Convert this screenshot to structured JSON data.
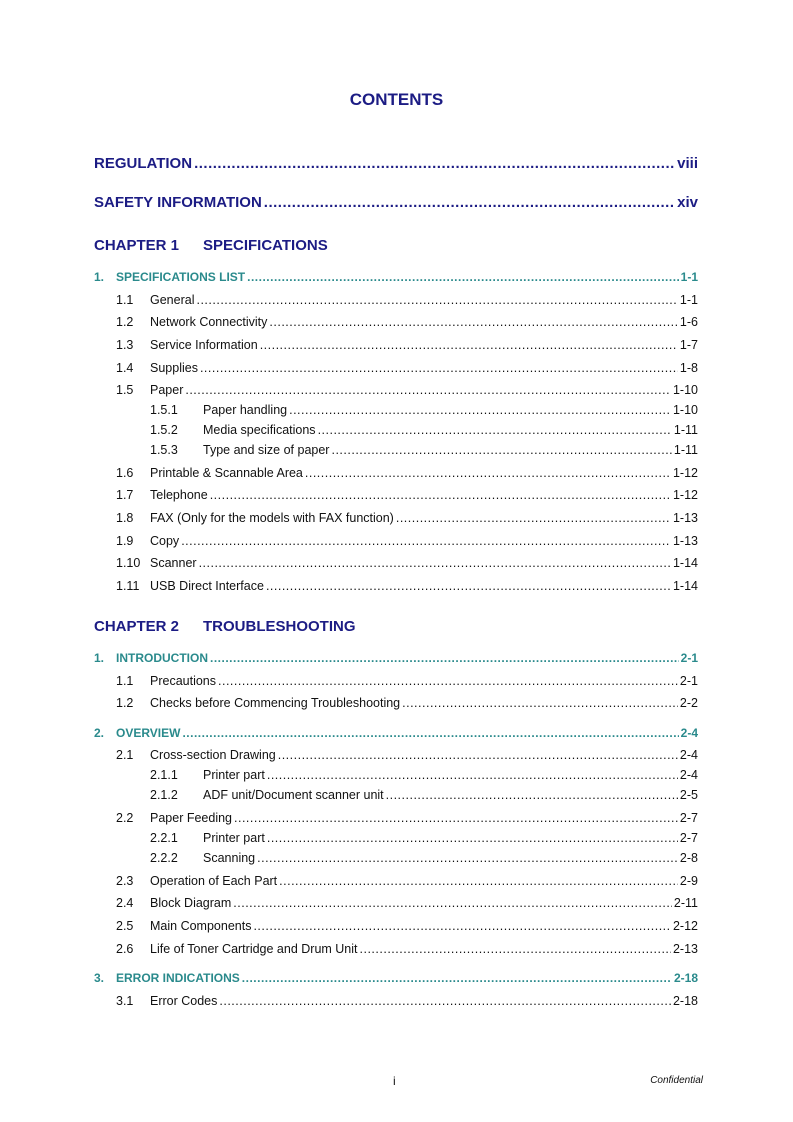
{
  "title": "CONTENTS",
  "entries": [
    {
      "level": "top",
      "num": "",
      "text": "REGULATION ",
      "page": "viii"
    },
    {
      "level": "top",
      "num": "",
      "text": "SAFETY INFORMATION",
      "page": "xiv"
    },
    {
      "level": "chap",
      "num": "CHAPTER 1",
      "text": "SPECIFICATIONS",
      "page": ""
    },
    {
      "level": "l1",
      "num": "1.",
      "text": "SPECIFICATIONS LIST",
      "page": "1-1"
    },
    {
      "level": "l2",
      "num": "1.1",
      "text": "General",
      "page": "1-1"
    },
    {
      "level": "l2",
      "num": "1.2",
      "text": "Network Connectivity",
      "page": "1-6"
    },
    {
      "level": "l2",
      "num": "1.3",
      "text": "Service Information",
      "page": "1-7"
    },
    {
      "level": "l2",
      "num": "1.4",
      "text": "Supplies",
      "page": "1-8"
    },
    {
      "level": "l2",
      "num": "1.5",
      "text": "Paper",
      "page": "1-10"
    },
    {
      "level": "l3",
      "num": "1.5.1",
      "text": "Paper handling",
      "page": "1-10"
    },
    {
      "level": "l3",
      "num": "1.5.2",
      "text": "Media specifications",
      "page": "1-11"
    },
    {
      "level": "l3",
      "num": "1.5.3",
      "text": "Type and size of paper",
      "page": "1-11"
    },
    {
      "level": "l2",
      "num": "1.6",
      "text": "Printable & Scannable Area",
      "page": "1-12"
    },
    {
      "level": "l2",
      "num": "1.7",
      "text": "Telephone",
      "page": "1-12"
    },
    {
      "level": "l2",
      "num": "1.8",
      "text": "FAX (Only for the models with FAX function)",
      "page": "1-13"
    },
    {
      "level": "l2",
      "num": "1.9",
      "text": "Copy",
      "page": "1-13"
    },
    {
      "level": "l2",
      "num": "1.10",
      "text": "Scanner",
      "page": "1-14"
    },
    {
      "level": "l2",
      "num": "1.11",
      "text": "USB Direct Interface",
      "page": "1-14"
    },
    {
      "level": "chap",
      "num": "CHAPTER 2",
      "text": "TROUBLESHOOTING",
      "page": ""
    },
    {
      "level": "l1",
      "num": "1.",
      "text": "INTRODUCTION",
      "page": "2-1"
    },
    {
      "level": "l2",
      "num": "1.1",
      "text": "Precautions",
      "page": "2-1"
    },
    {
      "level": "l2",
      "num": "1.2",
      "text": "Checks before Commencing Troubleshooting",
      "page": "2-2"
    },
    {
      "level": "l1",
      "num": "2.",
      "text": "OVERVIEW",
      "page": "2-4"
    },
    {
      "level": "l2",
      "num": "2.1",
      "text": "Cross-section Drawing",
      "page": "2-4"
    },
    {
      "level": "l3",
      "num": "2.1.1",
      "text": "Printer part",
      "page": "2-4"
    },
    {
      "level": "l3",
      "num": "2.1.2",
      "text": "ADF unit/Document scanner unit",
      "page": "2-5"
    },
    {
      "level": "l2",
      "num": "2.2",
      "text": "Paper Feeding",
      "page": "2-7"
    },
    {
      "level": "l3",
      "num": "2.2.1",
      "text": "Printer part",
      "page": "2-7"
    },
    {
      "level": "l3",
      "num": "2.2.2",
      "text": "Scanning",
      "page": "2-8"
    },
    {
      "level": "l2",
      "num": "2.3",
      "text": "Operation of Each Part",
      "page": "2-9"
    },
    {
      "level": "l2",
      "num": "2.4",
      "text": "Block Diagram",
      "page": "2-11"
    },
    {
      "level": "l2",
      "num": "2.5",
      "text": "Main Components",
      "page": "2-12"
    },
    {
      "level": "l2",
      "num": "2.6",
      "text": "Life of Toner Cartridge and Drum Unit",
      "page": "2-13"
    },
    {
      "level": "l1",
      "num": "3.",
      "text": "ERROR INDICATIONS",
      "page": "2-18"
    },
    {
      "level": "l2",
      "num": "3.1",
      "text": "Error Codes",
      "page": "2-18"
    }
  ],
  "footer": {
    "page_number": "i",
    "label": "Confidential"
  },
  "colors": {
    "heading": "#1c1c84",
    "section": "#2a8a8c",
    "body": "#111111"
  }
}
